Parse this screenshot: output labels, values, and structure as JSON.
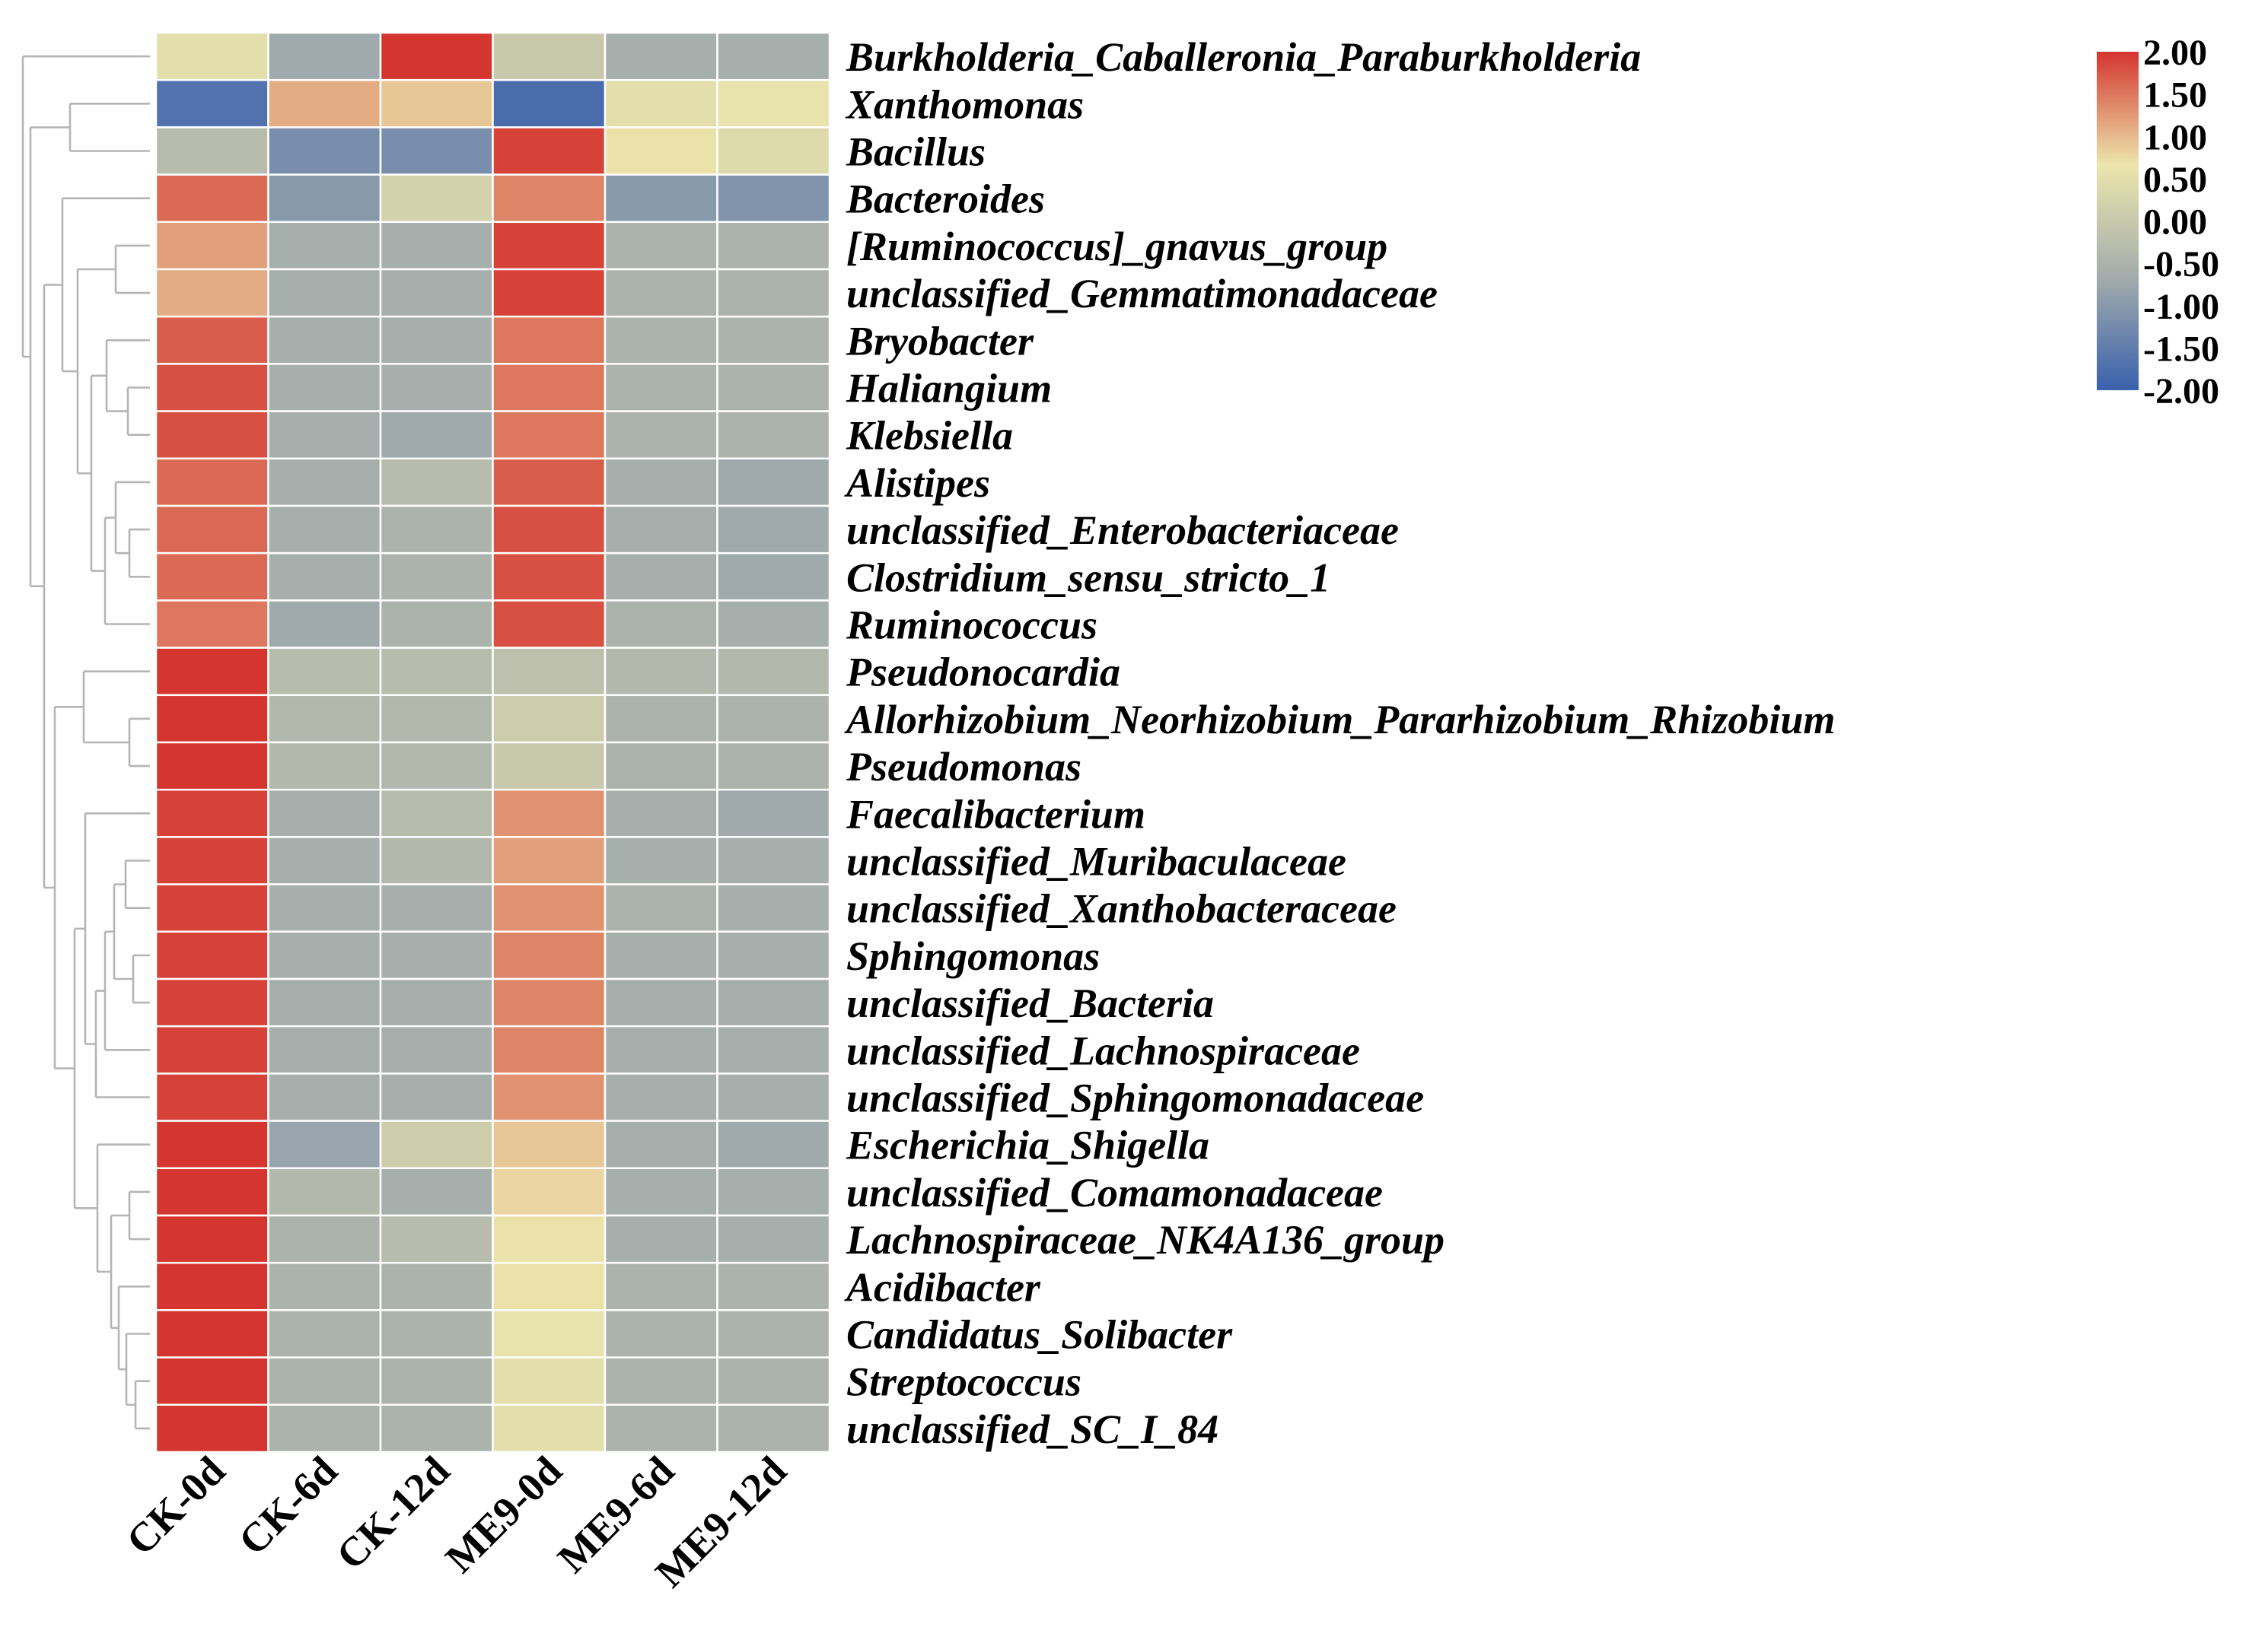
{
  "chart_data": {
    "type": "heatmap",
    "title": "",
    "columns": [
      "CK-0d",
      "CK-6d",
      "CK-12d",
      "ME9-0d",
      "ME9-6d",
      "ME9-12d"
    ],
    "rows": [
      "Burkholderia_Caballeronia_Paraburkholderia",
      "Xanthomonas",
      "Bacillus",
      "Bacteroides",
      "[Ruminococcus]_gnavus_group",
      "unclassified_Gemmatimonadaceae",
      "Bryobacter",
      "Haliangium",
      "Klebsiella",
      "Alistipes",
      "unclassified_Enterobacteriaceae",
      "Clostridium_sensu_stricto_1",
      "Ruminococcus",
      "Pseudonocardia",
      "Allorhizobium_Neorhizobium_Pararhizobium_Rhizobium",
      "Pseudomonas",
      "Faecalibacterium",
      "unclassified_Muribaculaceae",
      "unclassified_Xanthobacteraceae",
      "Sphingomonas",
      "unclassified_Bacteria",
      "unclassified_Lachnospiraceae",
      "unclassified_Sphingomonadaceae",
      "Escherichia_Shigella",
      "unclassified_Comamonadaceae",
      "Lachnospiraceae_NK4A136_group",
      "Acidibacter",
      "Candidatus_Solibacter",
      "Streptococcus",
      "unclassified_SC_I_84"
    ],
    "values": [
      [
        0.5,
        -0.7,
        2.0,
        0.0,
        -0.6,
        -0.6
      ],
      [
        -1.7,
        1.1,
        0.9,
        -1.8,
        0.5,
        0.6
      ],
      [
        -0.3,
        -1.2,
        -1.2,
        1.9,
        0.7,
        0.4
      ],
      [
        1.6,
        -1.0,
        0.2,
        1.4,
        -1.0,
        -1.1
      ],
      [
        1.2,
        -0.6,
        -0.6,
        1.9,
        -0.5,
        -0.5
      ],
      [
        1.1,
        -0.6,
        -0.6,
        1.9,
        -0.5,
        -0.5
      ],
      [
        1.7,
        -0.6,
        -0.6,
        1.5,
        -0.5,
        -0.5
      ],
      [
        1.8,
        -0.6,
        -0.6,
        1.5,
        -0.5,
        -0.5
      ],
      [
        1.8,
        -0.6,
        -0.7,
        1.5,
        -0.5,
        -0.5
      ],
      [
        1.6,
        -0.6,
        -0.3,
        1.7,
        -0.6,
        -0.7
      ],
      [
        1.6,
        -0.6,
        -0.5,
        1.8,
        -0.6,
        -0.7
      ],
      [
        1.6,
        -0.6,
        -0.5,
        1.8,
        -0.6,
        -0.7
      ],
      [
        1.5,
        -0.7,
        -0.5,
        1.8,
        -0.5,
        -0.6
      ],
      [
        2.0,
        -0.3,
        -0.3,
        -0.2,
        -0.4,
        -0.4
      ],
      [
        2.0,
        -0.4,
        -0.4,
        0.1,
        -0.5,
        -0.5
      ],
      [
        2.0,
        -0.4,
        -0.4,
        0.0,
        -0.5,
        -0.5
      ],
      [
        1.9,
        -0.6,
        -0.3,
        1.3,
        -0.6,
        -0.7
      ],
      [
        1.9,
        -0.6,
        -0.4,
        1.2,
        -0.6,
        -0.6
      ],
      [
        1.9,
        -0.6,
        -0.6,
        1.3,
        -0.5,
        -0.6
      ],
      [
        1.9,
        -0.6,
        -0.6,
        1.4,
        -0.6,
        -0.6
      ],
      [
        1.9,
        -0.6,
        -0.6,
        1.4,
        -0.6,
        -0.6
      ],
      [
        1.9,
        -0.6,
        -0.6,
        1.4,
        -0.6,
        -0.6
      ],
      [
        1.9,
        -0.6,
        -0.6,
        1.3,
        -0.6,
        -0.6
      ],
      [
        2.0,
        -0.8,
        0.1,
        0.9,
        -0.6,
        -0.7
      ],
      [
        2.0,
        -0.4,
        -0.6,
        0.8,
        -0.6,
        -0.6
      ],
      [
        2.0,
        -0.5,
        -0.3,
        0.7,
        -0.6,
        -0.6
      ],
      [
        2.0,
        -0.5,
        -0.5,
        0.7,
        -0.5,
        -0.5
      ],
      [
        2.0,
        -0.5,
        -0.5,
        0.6,
        -0.5,
        -0.5
      ],
      [
        2.0,
        -0.5,
        -0.5,
        0.5,
        -0.5,
        -0.5
      ],
      [
        2.0,
        -0.5,
        -0.5,
        0.5,
        -0.5,
        -0.5
      ]
    ],
    "color_scale": {
      "range": [
        -2.0,
        2.0
      ],
      "ticks": [
        "2.00",
        "1.50",
        "1.00",
        "0.50",
        "0.00",
        "-0.50",
        "-1.00",
        "-1.50",
        "-2.00"
      ],
      "colors": [
        "#3a61ad",
        "#a3acac",
        "#ece6ac",
        "#d4352f"
      ]
    },
    "dendrogram": "rows"
  }
}
